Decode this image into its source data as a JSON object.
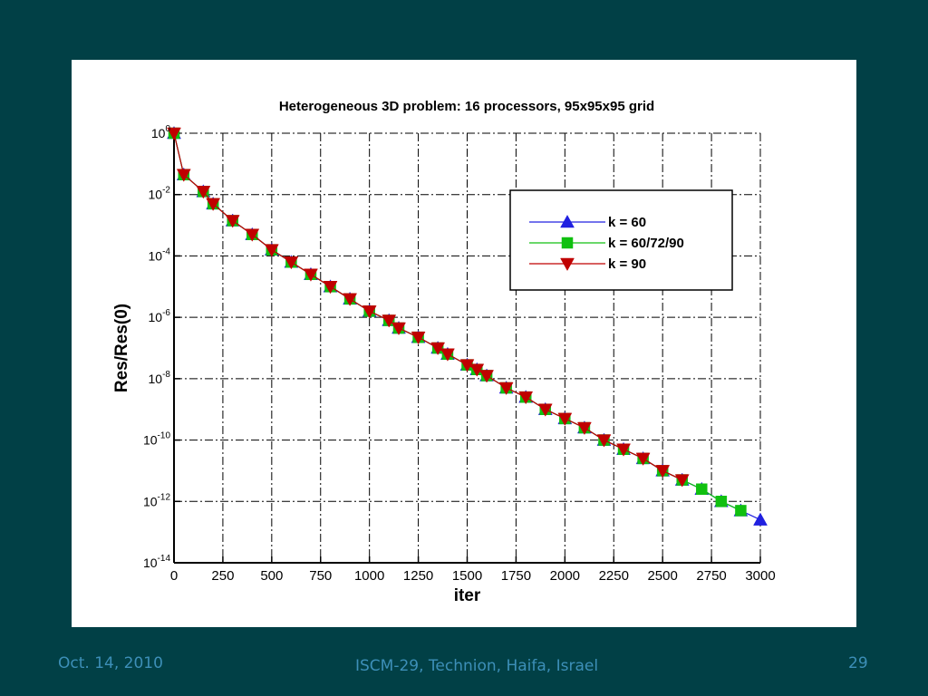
{
  "footer": {
    "date": "Oct. 14, 2010",
    "venue": "ISCM-29, Technion, Haifa, Israel",
    "page": "29"
  },
  "colors": {
    "background": "#014046",
    "footer_text": "#3d8fb8",
    "series_k60": "#2020e0",
    "series_k607290": "#10c010",
    "series_k90": "#c00000"
  },
  "chart_data": {
    "type": "line",
    "title": "Heterogeneous 3D problem:  16 processors,  95x95x95 grid",
    "xlabel": "iter",
    "ylabel": "Res/Res(0)",
    "xlim": [
      0,
      3000
    ],
    "ylim_log10": [
      -14,
      0
    ],
    "yscale": "log",
    "grid": true,
    "legend": "top-right",
    "x_ticks": [
      "0",
      "250",
      "500",
      "750",
      "1000",
      "1250",
      "1500",
      "1750",
      "2000",
      "2250",
      "2500",
      "2750",
      "3000"
    ],
    "y_ticks": [
      {
        "base": "10",
        "exp": "0"
      },
      {
        "base": "10",
        "exp": "-2"
      },
      {
        "base": "10",
        "exp": "-4"
      },
      {
        "base": "10",
        "exp": "-6"
      },
      {
        "base": "10",
        "exp": "-8"
      },
      {
        "base": "10",
        "exp": "-10"
      },
      {
        "base": "10",
        "exp": "-12"
      },
      {
        "base": "10",
        "exp": "-14"
      }
    ],
    "series": [
      {
        "name": "k = 60",
        "marker": "triangle-up",
        "color": "#2020e0",
        "x": [
          0,
          50,
          150,
          200,
          300,
          400,
          500,
          600,
          700,
          800,
          900,
          1000,
          1100,
          1150,
          1250,
          1350,
          1400,
          1500,
          1550,
          1600,
          1700,
          1800,
          1900,
          2000,
          2100,
          2200,
          2300,
          2400,
          2500,
          2600,
          2700,
          2800,
          2900,
          3000
        ],
        "y_log10": [
          0.0,
          -1.35,
          -1.9,
          -2.3,
          -2.85,
          -3.3,
          -3.8,
          -4.2,
          -4.6,
          -5.0,
          -5.4,
          -5.8,
          -6.1,
          -6.35,
          -6.65,
          -7.0,
          -7.2,
          -7.55,
          -7.7,
          -7.9,
          -8.3,
          -8.6,
          -9.0,
          -9.3,
          -9.6,
          -10.0,
          -10.3,
          -10.6,
          -11.0,
          -11.3,
          -11.6,
          -12.0,
          -12.3,
          -12.6
        ]
      },
      {
        "name": "k = 60/72/90",
        "marker": "square",
        "color": "#10c010",
        "x": [
          0,
          50,
          150,
          200,
          300,
          400,
          500,
          600,
          700,
          800,
          900,
          1000,
          1100,
          1150,
          1250,
          1350,
          1400,
          1500,
          1550,
          1600,
          1700,
          1800,
          1900,
          2000,
          2100,
          2200,
          2300,
          2400,
          2500,
          2600,
          2700,
          2800,
          2900
        ],
        "y_log10": [
          0.0,
          -1.35,
          -1.9,
          -2.3,
          -2.85,
          -3.3,
          -3.8,
          -4.2,
          -4.6,
          -5.0,
          -5.4,
          -5.8,
          -6.1,
          -6.35,
          -6.65,
          -7.0,
          -7.2,
          -7.55,
          -7.7,
          -7.9,
          -8.3,
          -8.6,
          -9.0,
          -9.3,
          -9.6,
          -10.0,
          -10.3,
          -10.6,
          -11.0,
          -11.3,
          -11.6,
          -12.0,
          -12.3
        ]
      },
      {
        "name": "k = 90",
        "marker": "triangle-down",
        "color": "#c00000",
        "x": [
          0,
          50,
          150,
          200,
          300,
          400,
          500,
          600,
          700,
          800,
          900,
          1000,
          1100,
          1150,
          1250,
          1350,
          1400,
          1500,
          1550,
          1600,
          1700,
          1800,
          1900,
          2000,
          2100,
          2200,
          2300,
          2400,
          2500,
          2600
        ],
        "y_log10": [
          0.0,
          -1.35,
          -1.9,
          -2.3,
          -2.85,
          -3.3,
          -3.8,
          -4.2,
          -4.6,
          -5.0,
          -5.4,
          -5.8,
          -6.1,
          -6.35,
          -6.65,
          -7.0,
          -7.2,
          -7.55,
          -7.7,
          -7.9,
          -8.3,
          -8.6,
          -9.0,
          -9.3,
          -9.6,
          -10.0,
          -10.3,
          -10.6,
          -11.0,
          -11.3
        ]
      }
    ]
  }
}
